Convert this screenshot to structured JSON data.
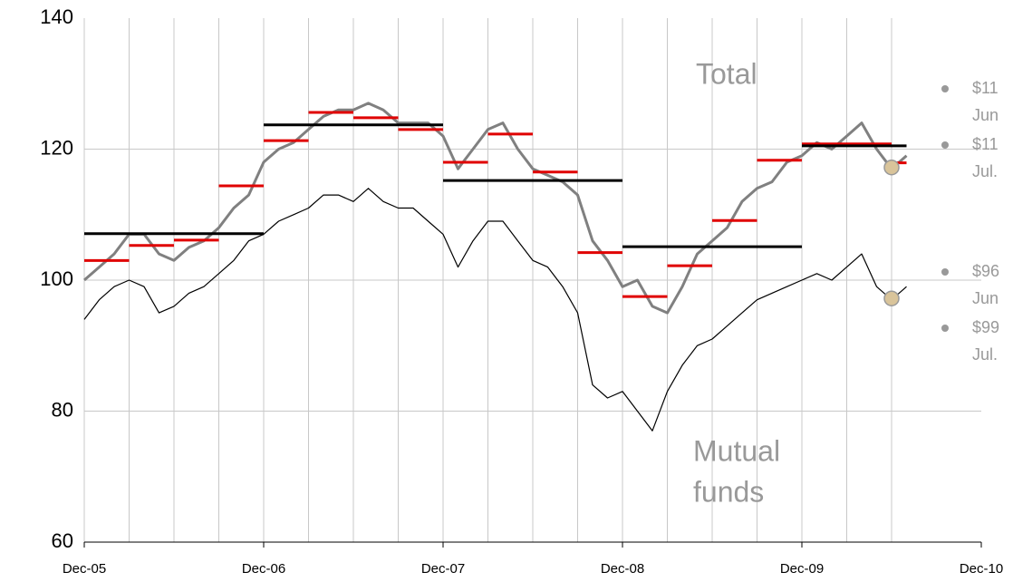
{
  "chart_data": {
    "type": "line",
    "xlim": [
      "Dec-05",
      "Dec-10"
    ],
    "xticks": [
      "Dec-05",
      "Dec-06",
      "Dec-07",
      "Dec-08",
      "Dec-09",
      "Dec-10"
    ],
    "ylim": [
      60,
      140
    ],
    "yticks": [
      60,
      80,
      100,
      120,
      140
    ],
    "grid": true,
    "x": [
      "Dec-05",
      "Jan-06",
      "Feb-06",
      "Mar-06",
      "Apr-06",
      "May-06",
      "Jun-06",
      "Jul-06",
      "Aug-06",
      "Sep-06",
      "Oct-06",
      "Nov-06",
      "Dec-06",
      "Jan-07",
      "Feb-07",
      "Mar-07",
      "Apr-07",
      "May-07",
      "Jun-07",
      "Jul-07",
      "Aug-07",
      "Sep-07",
      "Oct-07",
      "Nov-07",
      "Dec-07",
      "Jan-08",
      "Feb-08",
      "Mar-08",
      "Apr-08",
      "May-08",
      "Jun-08",
      "Jul-08",
      "Aug-08",
      "Sep-08",
      "Oct-08",
      "Nov-08",
      "Dec-08",
      "Jan-09",
      "Feb-09",
      "Mar-09",
      "Apr-09",
      "May-09",
      "Jun-09",
      "Jul-09",
      "Aug-09",
      "Sep-09",
      "Oct-09",
      "Nov-09",
      "Dec-09",
      "Jan-10",
      "Feb-10",
      "Mar-10",
      "Apr-10",
      "May-10",
      "Jun-10",
      "Jul-10"
    ],
    "series": [
      {
        "color": "#808080",
        "width": 3,
        "values": [
          100,
          102,
          104,
          107,
          107,
          104,
          103,
          105,
          106,
          108,
          111,
          113,
          118,
          120,
          121,
          123,
          125,
          126,
          126,
          127,
          126,
          124,
          124,
          124,
          122,
          117,
          120,
          123,
          124,
          120,
          117,
          116,
          115,
          113,
          106,
          103,
          99,
          100,
          96,
          95,
          99,
          104,
          106,
          108,
          112,
          114,
          115,
          118,
          119,
          121,
          120,
          122,
          124,
          120,
          117,
          119
        ]
      },
      {
        "color": "#000000",
        "width": 1.2,
        "values": [
          94,
          97,
          99,
          100,
          99,
          95,
          96,
          98,
          99,
          101,
          103,
          106,
          107,
          109,
          110,
          111,
          113,
          113,
          112,
          114,
          112,
          111,
          111,
          109,
          107,
          102,
          106,
          109,
          109,
          106,
          103,
          102,
          99,
          95,
          84,
          82,
          83,
          80,
          77,
          83,
          87,
          90,
          91,
          93,
          95,
          97,
          98,
          99,
          100,
          101,
          100,
          102,
          104,
          99,
          97,
          99
        ]
      }
    ],
    "quarterly_averages": {
      "color": "#e00000",
      "start": [
        "Dec-05",
        "Mar-06",
        "Jun-06",
        "Sep-06",
        "Dec-06",
        "Mar-07",
        "Jun-07",
        "Sep-07",
        "Dec-07",
        "Mar-08",
        "Jun-08",
        "Sep-08",
        "Dec-08",
        "Mar-09",
        "Jun-09",
        "Sep-09",
        "Dec-09",
        "Mar-10",
        "Jun-10"
      ],
      "end": [
        "Mar-06",
        "Jun-06",
        "Sep-06",
        "Dec-06",
        "Mar-07",
        "Jun-07",
        "Sep-07",
        "Dec-07",
        "Mar-08",
        "Jun-08",
        "Sep-08",
        "Dec-08",
        "Mar-09",
        "Jun-09",
        "Sep-09",
        "Dec-09",
        "Mar-10",
        "Jun-10",
        "Jul-10"
      ],
      "values": [
        103.0,
        105.3,
        106.1,
        114.4,
        121.3,
        125.6,
        124.8,
        123.0,
        118.0,
        122.3,
        116.5,
        104.2,
        97.5,
        102.2,
        109.1,
        118.3,
        120.8,
        120.8,
        117.9
      ]
    },
    "annual_averages": {
      "color": "#000000",
      "start": [
        "Dec-05",
        "Dec-06",
        "Dec-07",
        "Dec-08",
        "Dec-09"
      ],
      "end": [
        "Dec-06",
        "Dec-07",
        "Dec-08",
        "Dec-09",
        "Jul-10"
      ],
      "values": [
        107.1,
        123.7,
        115.2,
        105.1,
        120.5
      ]
    },
    "markers": {
      "color": "#d9c49a",
      "x": [
        "Jun-10",
        "Jun-10"
      ],
      "values": [
        117.2,
        97.2
      ]
    },
    "annotations": {
      "total": "Total",
      "mutual_funds": [
        "Mutual",
        "funds"
      ]
    },
    "side_notes": [
      [
        "$11",
        "Jun"
      ],
      [
        "$11",
        "Jul."
      ],
      [
        "$96",
        "Jun"
      ],
      [
        "$99",
        "Jul."
      ]
    ]
  }
}
